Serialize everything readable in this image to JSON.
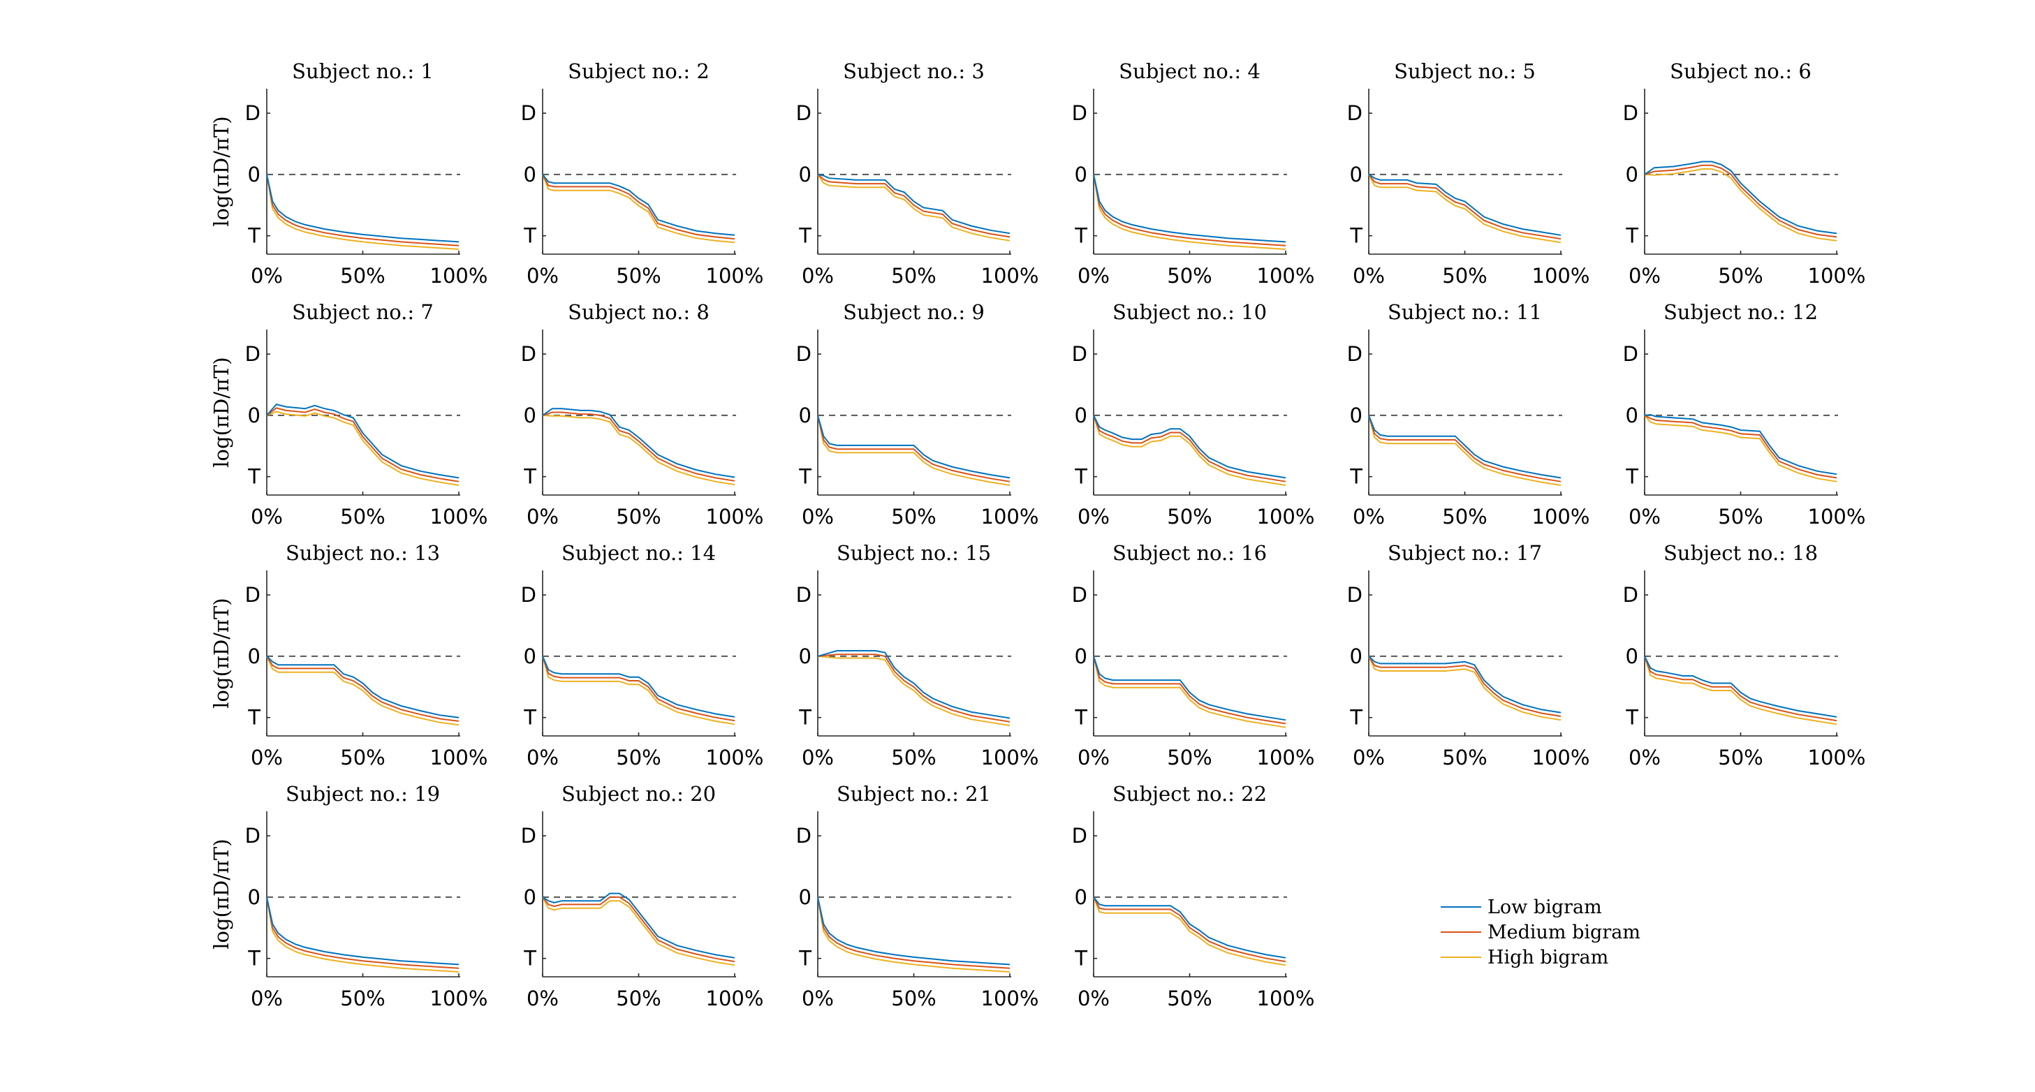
{
  "chart_data": {
    "type": "line",
    "layout": "small-multiples-grid",
    "panel_title_prefix": "Subject no.: ",
    "ylabel": "log(πD/πT)",
    "x_ticks": [
      "0%",
      "50%",
      "100%"
    ],
    "x_range": [
      0,
      100
    ],
    "y_ticks": [
      "D",
      "0",
      "T"
    ],
    "y_range": [
      -1.3,
      1.4
    ],
    "zero_line": "dashed",
    "grid": false,
    "legend": {
      "placement": "bottom-right",
      "entries": [
        {
          "name": "Low bigram",
          "color": "#0072BD"
        },
        {
          "name": "Medium bigram",
          "color": "#D95319"
        },
        {
          "name": "High bigram",
          "color": "#EDB120"
        }
      ]
    },
    "series_offsets": {
      "Low bigram": 0.06,
      "Medium bigram": 0.0,
      "High bigram": -0.06
    },
    "panels": [
      {
        "subject": 1,
        "x": [
          0,
          3,
          6,
          10,
          15,
          20,
          30,
          40,
          50,
          60,
          70,
          80,
          90,
          100
        ],
        "y": [
          0,
          -0.5,
          -0.65,
          -0.75,
          -0.83,
          -0.88,
          -0.95,
          -1.0,
          -1.04,
          -1.07,
          -1.1,
          -1.12,
          -1.14,
          -1.16
        ]
      },
      {
        "subject": 2,
        "x": [
          0,
          3,
          6,
          20,
          35,
          40,
          45,
          50,
          55,
          60,
          70,
          80,
          90,
          100
        ],
        "y": [
          0,
          -0.18,
          -0.2,
          -0.2,
          -0.2,
          -0.25,
          -0.32,
          -0.45,
          -0.55,
          -0.8,
          -0.9,
          -0.98,
          -1.02,
          -1.05
        ]
      },
      {
        "subject": 3,
        "x": [
          0,
          3,
          6,
          20,
          35,
          40,
          45,
          50,
          55,
          65,
          70,
          80,
          90,
          100
        ],
        "y": [
          0,
          -0.08,
          -0.12,
          -0.15,
          -0.15,
          -0.3,
          -0.35,
          -0.5,
          -0.6,
          -0.65,
          -0.8,
          -0.9,
          -0.97,
          -1.02
        ]
      },
      {
        "subject": 4,
        "x": [
          0,
          3,
          6,
          10,
          15,
          20,
          30,
          40,
          50,
          60,
          70,
          80,
          90,
          100
        ],
        "y": [
          0,
          -0.5,
          -0.65,
          -0.75,
          -0.83,
          -0.88,
          -0.95,
          -1.0,
          -1.04,
          -1.07,
          -1.1,
          -1.12,
          -1.14,
          -1.16
        ]
      },
      {
        "subject": 5,
        "x": [
          0,
          3,
          6,
          20,
          25,
          35,
          40,
          45,
          50,
          60,
          70,
          80,
          90,
          100
        ],
        "y": [
          0,
          -0.12,
          -0.15,
          -0.15,
          -0.2,
          -0.22,
          -0.35,
          -0.45,
          -0.5,
          -0.75,
          -0.87,
          -0.95,
          -1.0,
          -1.05
        ]
      },
      {
        "subject": 6,
        "x": [
          0,
          5,
          15,
          25,
          30,
          35,
          40,
          45,
          50,
          60,
          70,
          80,
          90,
          100
        ],
        "y": [
          0,
          0.05,
          0.07,
          0.12,
          0.15,
          0.15,
          0.1,
          0.0,
          -0.2,
          -0.5,
          -0.75,
          -0.9,
          -0.98,
          -1.02
        ]
      },
      {
        "subject": 7,
        "x": [
          0,
          5,
          10,
          20,
          25,
          30,
          35,
          40,
          45,
          50,
          60,
          70,
          80,
          90,
          100
        ],
        "y": [
          0,
          0.12,
          0.08,
          0.05,
          0.1,
          0.05,
          0.02,
          -0.05,
          -0.1,
          -0.35,
          -0.7,
          -0.88,
          -0.97,
          -1.03,
          -1.08
        ]
      },
      {
        "subject": 8,
        "x": [
          0,
          5,
          10,
          20,
          25,
          30,
          35,
          40,
          45,
          50,
          60,
          70,
          80,
          90,
          100
        ],
        "y": [
          0,
          0.05,
          0.05,
          0.02,
          0.02,
          0.0,
          -0.05,
          -0.25,
          -0.3,
          -0.42,
          -0.7,
          -0.85,
          -0.95,
          -1.02,
          -1.07
        ]
      },
      {
        "subject": 9,
        "x": [
          0,
          3,
          6,
          10,
          20,
          40,
          50,
          55,
          60,
          70,
          80,
          90,
          100
        ],
        "y": [
          0,
          -0.4,
          -0.52,
          -0.55,
          -0.55,
          -0.55,
          -0.55,
          -0.7,
          -0.8,
          -0.9,
          -0.97,
          -1.03,
          -1.08
        ]
      },
      {
        "subject": 10,
        "x": [
          0,
          3,
          6,
          10,
          15,
          20,
          25,
          30,
          35,
          40,
          45,
          50,
          55,
          60,
          70,
          80,
          90,
          100
        ],
        "y": [
          0,
          -0.25,
          -0.3,
          -0.35,
          -0.42,
          -0.45,
          -0.45,
          -0.37,
          -0.35,
          -0.28,
          -0.28,
          -0.4,
          -0.6,
          -0.75,
          -0.9,
          -0.98,
          -1.03,
          -1.08
        ]
      },
      {
        "subject": 11,
        "x": [
          0,
          3,
          6,
          10,
          20,
          40,
          45,
          50,
          55,
          60,
          70,
          80,
          90,
          100
        ],
        "y": [
          0,
          -0.3,
          -0.38,
          -0.4,
          -0.4,
          -0.4,
          -0.4,
          -0.55,
          -0.7,
          -0.8,
          -0.9,
          -0.97,
          -1.03,
          -1.08
        ]
      },
      {
        "subject": 12,
        "x": [
          0,
          3,
          6,
          15,
          25,
          30,
          40,
          45,
          50,
          60,
          65,
          70,
          80,
          90,
          100
        ],
        "y": [
          0,
          -0.05,
          -0.08,
          -0.1,
          -0.12,
          -0.18,
          -0.22,
          -0.25,
          -0.3,
          -0.32,
          -0.55,
          -0.75,
          -0.88,
          -0.97,
          -1.02
        ]
      },
      {
        "subject": 13,
        "x": [
          0,
          3,
          6,
          10,
          20,
          35,
          40,
          45,
          50,
          55,
          60,
          70,
          80,
          90,
          100
        ],
        "y": [
          0,
          -0.15,
          -0.2,
          -0.2,
          -0.2,
          -0.2,
          -0.35,
          -0.4,
          -0.5,
          -0.65,
          -0.75,
          -0.87,
          -0.95,
          -1.02,
          -1.06
        ]
      },
      {
        "subject": 14,
        "x": [
          0,
          3,
          6,
          10,
          20,
          40,
          45,
          50,
          55,
          60,
          70,
          80,
          90,
          100
        ],
        "y": [
          0,
          -0.28,
          -0.33,
          -0.35,
          -0.35,
          -0.35,
          -0.4,
          -0.4,
          -0.5,
          -0.7,
          -0.85,
          -0.93,
          -1.0,
          -1.05
        ]
      },
      {
        "subject": 15,
        "x": [
          0,
          10,
          20,
          30,
          35,
          40,
          45,
          50,
          55,
          60,
          70,
          80,
          90,
          100
        ],
        "y": [
          0,
          0.03,
          0.03,
          0.03,
          0.0,
          -0.25,
          -0.4,
          -0.5,
          -0.65,
          -0.75,
          -0.88,
          -0.97,
          -1.02,
          -1.07
        ]
      },
      {
        "subject": 16,
        "x": [
          0,
          3,
          6,
          10,
          20,
          40,
          45,
          50,
          55,
          60,
          70,
          80,
          90,
          100
        ],
        "y": [
          0,
          -0.35,
          -0.42,
          -0.45,
          -0.45,
          -0.45,
          -0.45,
          -0.65,
          -0.78,
          -0.85,
          -0.93,
          -1.0,
          -1.05,
          -1.1
        ]
      },
      {
        "subject": 17,
        "x": [
          0,
          3,
          6,
          20,
          40,
          50,
          55,
          60,
          65,
          70,
          80,
          90,
          100
        ],
        "y": [
          0,
          -0.15,
          -0.18,
          -0.18,
          -0.18,
          -0.15,
          -0.2,
          -0.45,
          -0.6,
          -0.72,
          -0.85,
          -0.93,
          -0.98
        ]
      },
      {
        "subject": 18,
        "x": [
          0,
          3,
          6,
          10,
          15,
          20,
          25,
          30,
          35,
          40,
          45,
          50,
          55,
          60,
          70,
          80,
          90,
          100
        ],
        "y": [
          0,
          -0.25,
          -0.3,
          -0.32,
          -0.35,
          -0.38,
          -0.38,
          -0.45,
          -0.5,
          -0.5,
          -0.5,
          -0.65,
          -0.75,
          -0.8,
          -0.88,
          -0.95,
          -1.0,
          -1.05
        ]
      },
      {
        "subject": 19,
        "x": [
          0,
          3,
          6,
          10,
          15,
          20,
          30,
          40,
          50,
          60,
          70,
          80,
          90,
          100
        ],
        "y": [
          0,
          -0.5,
          -0.65,
          -0.75,
          -0.83,
          -0.88,
          -0.95,
          -1.0,
          -1.04,
          -1.07,
          -1.1,
          -1.12,
          -1.14,
          -1.16
        ]
      },
      {
        "subject": 20,
        "x": [
          0,
          3,
          6,
          10,
          20,
          30,
          35,
          40,
          45,
          50,
          55,
          60,
          70,
          80,
          90,
          100
        ],
        "y": [
          0,
          -0.12,
          -0.15,
          -0.12,
          -0.12,
          -0.12,
          0.0,
          0.0,
          -0.1,
          -0.3,
          -0.5,
          -0.7,
          -0.85,
          -0.93,
          -1.0,
          -1.05
        ]
      },
      {
        "subject": 21,
        "x": [
          0,
          3,
          6,
          10,
          15,
          20,
          30,
          40,
          50,
          60,
          70,
          80,
          90,
          100
        ],
        "y": [
          0,
          -0.5,
          -0.65,
          -0.75,
          -0.83,
          -0.88,
          -0.95,
          -1.0,
          -1.04,
          -1.07,
          -1.1,
          -1.12,
          -1.14,
          -1.16
        ]
      },
      {
        "subject": 22,
        "x": [
          0,
          3,
          6,
          10,
          20,
          40,
          45,
          50,
          55,
          60,
          70,
          80,
          90,
          100
        ],
        "y": [
          0,
          -0.18,
          -0.2,
          -0.2,
          -0.2,
          -0.2,
          -0.3,
          -0.5,
          -0.6,
          -0.72,
          -0.85,
          -0.93,
          -1.0,
          -1.05
        ]
      }
    ]
  }
}
